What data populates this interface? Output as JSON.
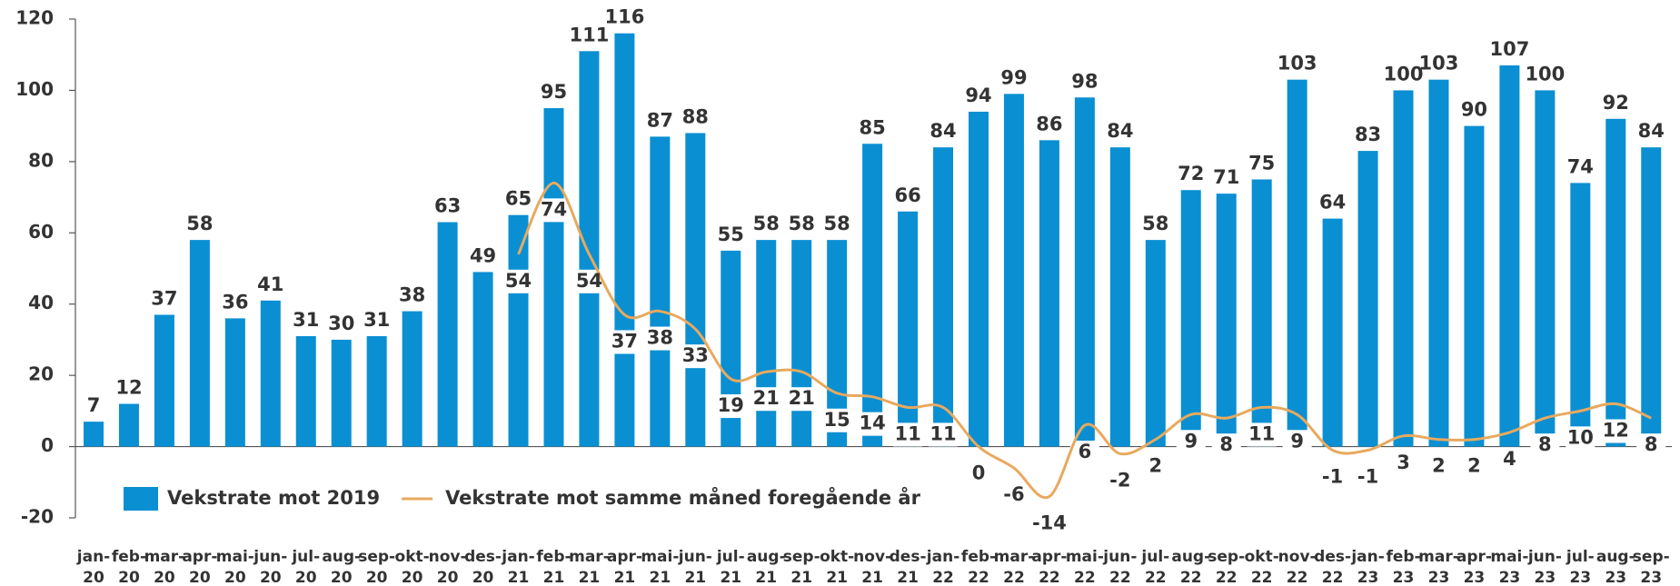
{
  "chart_data": {
    "type": "bar",
    "categories": [
      [
        "jan-",
        "20"
      ],
      [
        "feb-",
        "20"
      ],
      [
        "mar-",
        "20"
      ],
      [
        "apr-",
        "20"
      ],
      [
        "mai-",
        "20"
      ],
      [
        "jun-",
        "20"
      ],
      [
        "jul-",
        "20"
      ],
      [
        "aug-",
        "20"
      ],
      [
        "sep-",
        "20"
      ],
      [
        "okt-",
        "20"
      ],
      [
        "nov-",
        "20"
      ],
      [
        "des-",
        "20"
      ],
      [
        "jan-",
        "21"
      ],
      [
        "feb-",
        "21"
      ],
      [
        "mar-",
        "21"
      ],
      [
        "apr-",
        "21"
      ],
      [
        "mai-",
        "21"
      ],
      [
        "jun-",
        "21"
      ],
      [
        "jul-",
        "21"
      ],
      [
        "aug-",
        "21"
      ],
      [
        "sep-",
        "21"
      ],
      [
        "okt-",
        "21"
      ],
      [
        "nov-",
        "21"
      ],
      [
        "des-",
        "21"
      ],
      [
        "jan-",
        "22"
      ],
      [
        "feb-",
        "22"
      ],
      [
        "mar-",
        "22"
      ],
      [
        "apr-",
        "22"
      ],
      [
        "mai-",
        "22"
      ],
      [
        "jun-",
        "22"
      ],
      [
        "jul-",
        "22"
      ],
      [
        "aug-",
        "22"
      ],
      [
        "sep-",
        "22"
      ],
      [
        "okt-",
        "22"
      ],
      [
        "nov-",
        "22"
      ],
      [
        "des-",
        "22"
      ],
      [
        "jan-",
        "23"
      ],
      [
        "feb-",
        "23"
      ],
      [
        "mar-",
        "23"
      ],
      [
        "apr-",
        "23"
      ],
      [
        "mai-",
        "23"
      ],
      [
        "jun-",
        "23"
      ],
      [
        "jul-",
        "23"
      ],
      [
        "aug-",
        "23"
      ],
      [
        "sep-",
        "23"
      ]
    ],
    "series": [
      {
        "name": "Vekstrate mot 2019",
        "type": "bar",
        "color": "#0a8fd2",
        "values": [
          7,
          12,
          37,
          58,
          36,
          41,
          31,
          30,
          31,
          38,
          63,
          49,
          65,
          95,
          111,
          116,
          87,
          88,
          55,
          58,
          58,
          58,
          85,
          66,
          84,
          94,
          99,
          86,
          98,
          84,
          58,
          72,
          71,
          75,
          103,
          64,
          83,
          100,
          103,
          90,
          107,
          100,
          74,
          92,
          84
        ]
      },
      {
        "name": "Vekstrate mot samme måned foregående år",
        "type": "line",
        "color": "#e8a95e",
        "values": [
          null,
          null,
          null,
          null,
          null,
          null,
          null,
          null,
          null,
          null,
          null,
          null,
          54,
          74,
          54,
          37,
          38,
          33,
          19,
          21,
          21,
          15,
          14,
          11,
          11,
          0,
          -6,
          -14,
          6,
          -2,
          2,
          9,
          8,
          11,
          9,
          -1,
          -1,
          3,
          2,
          2,
          4,
          8,
          10,
          12,
          8
        ]
      }
    ],
    "ylim": [
      -20,
      120
    ],
    "yticks": [
      -20,
      0,
      20,
      40,
      60,
      80,
      100,
      120
    ],
    "legend": "bottom-left"
  }
}
